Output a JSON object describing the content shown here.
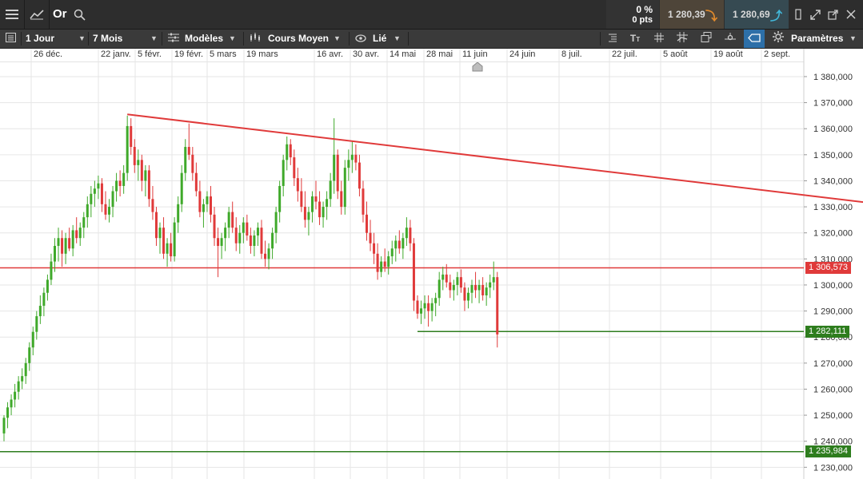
{
  "header": {
    "instrument": "Or",
    "change_pct": "0 %",
    "change_pts": "0 pts",
    "sell_price": "1 280,39",
    "buy_price": "1 280,69",
    "icons": {
      "menu": "menu-icon",
      "chart_type": "line-chart-icon",
      "search": "search-icon",
      "sell_arrow": "arrow-down-icon",
      "buy_arrow": "arrow-up-icon",
      "restore": "window-restore-icon",
      "expand": "expand-icon",
      "popout": "popout-icon",
      "close": "close-icon"
    },
    "colors": {
      "sell": "#e08a2c",
      "buy": "#42b6d8"
    }
  },
  "toolbar": {
    "interval": "1 Jour",
    "period": "7 Mois",
    "models": "Modèles",
    "indicator": "Cours Moyen",
    "link": "Lié",
    "settings": "Paramètres",
    "right_tools": [
      "list-icon",
      "text-tool-icon",
      "grid-icon",
      "crosshair-icon",
      "layers-icon",
      "pin-icon",
      "tag-icon",
      "gear-icon"
    ]
  },
  "chart_data": {
    "type": "candlestick",
    "x_labels": [
      "26 déc.",
      "22 janv.",
      "5 févr.",
      "19 févr.",
      "5 mars",
      "19 mars",
      "16 avr.",
      "30 avr.",
      "14 mai",
      "28 mai",
      "11 juin",
      "24 juin",
      "8 juil.",
      "22 juil.",
      "5 août",
      "19 août",
      "2 sept."
    ],
    "y_tick_labels": [
      "1 380,000",
      "1 370,000",
      "1 360,000",
      "1 350,000",
      "1 340,000",
      "1 330,000",
      "1 320,000",
      "1 310,000",
      "1 300,000",
      "1 290,000",
      "1 280,000",
      "1 270,000",
      "1 260,000",
      "1 250,000",
      "1 240,000",
      "1 230,000"
    ],
    "y_ticks": [
      1380,
      1370,
      1360,
      1350,
      1340,
      1330,
      1320,
      1310,
      1300,
      1290,
      1280,
      1270,
      1260,
      1250,
      1240,
      1230
    ],
    "ylim": [
      1225.5,
      1385.5
    ],
    "grid": true,
    "colors": {
      "up": "#3fa92a",
      "down": "#e03a3a",
      "trend": "#e03a3a",
      "support": "#2e7d1e"
    },
    "candles": [
      [
        1243,
        1250,
        1240,
        1249
      ],
      [
        1249,
        1255,
        1245,
        1253
      ],
      [
        1253,
        1258,
        1250,
        1256
      ],
      [
        1256,
        1262,
        1253,
        1259
      ],
      [
        1259,
        1265,
        1256,
        1263
      ],
      [
        1263,
        1268,
        1260,
        1265
      ],
      [
        1265,
        1272,
        1262,
        1270
      ],
      [
        1270,
        1278,
        1267,
        1276
      ],
      [
        1276,
        1284,
        1273,
        1282
      ],
      [
        1282,
        1290,
        1279,
        1288
      ],
      [
        1288,
        1296,
        1285,
        1292
      ],
      [
        1292,
        1299,
        1288,
        1297
      ],
      [
        1297,
        1304,
        1294,
        1302
      ],
      [
        1302,
        1312,
        1300,
        1309
      ],
      [
        1309,
        1318,
        1305,
        1315
      ],
      [
        1315,
        1322,
        1309,
        1318
      ],
      [
        1318,
        1321,
        1307,
        1312
      ],
      [
        1312,
        1320,
        1308,
        1318
      ],
      [
        1318,
        1322,
        1313,
        1314
      ],
      [
        1314,
        1323,
        1311,
        1321
      ],
      [
        1321,
        1326,
        1316,
        1318
      ],
      [
        1318,
        1324,
        1315,
        1322
      ],
      [
        1322,
        1328,
        1318,
        1326
      ],
      [
        1326,
        1334,
        1322,
        1331
      ],
      [
        1331,
        1338,
        1326,
        1335
      ],
      [
        1335,
        1340,
        1330,
        1337
      ],
      [
        1337,
        1342,
        1333,
        1339
      ],
      [
        1339,
        1341,
        1328,
        1331
      ],
      [
        1331,
        1336,
        1325,
        1327
      ],
      [
        1327,
        1333,
        1324,
        1330
      ],
      [
        1330,
        1338,
        1326,
        1336
      ],
      [
        1336,
        1343,
        1332,
        1340
      ],
      [
        1340,
        1344,
        1334,
        1338
      ],
      [
        1338,
        1346,
        1335,
        1343
      ],
      [
        1343,
        1365,
        1340,
        1361
      ],
      [
        1361,
        1364,
        1350,
        1353
      ],
      [
        1353,
        1356,
        1343,
        1346
      ],
      [
        1346,
        1352,
        1340,
        1348
      ],
      [
        1348,
        1350,
        1336,
        1340
      ],
      [
        1340,
        1346,
        1334,
        1344
      ],
      [
        1344,
        1346,
        1330,
        1333
      ],
      [
        1333,
        1338,
        1325,
        1328
      ],
      [
        1328,
        1330,
        1315,
        1318
      ],
      [
        1318,
        1324,
        1312,
        1322
      ],
      [
        1322,
        1326,
        1310,
        1312
      ],
      [
        1312,
        1318,
        1307,
        1316
      ],
      [
        1316,
        1320,
        1309,
        1311
      ],
      [
        1311,
        1326,
        1309,
        1324
      ],
      [
        1324,
        1334,
        1320,
        1331
      ],
      [
        1331,
        1346,
        1328,
        1343
      ],
      [
        1343,
        1356,
        1340,
        1353
      ],
      [
        1353,
        1362,
        1348,
        1350
      ],
      [
        1350,
        1353,
        1340,
        1343
      ],
      [
        1343,
        1347,
        1334,
        1336
      ],
      [
        1336,
        1340,
        1326,
        1328
      ],
      [
        1328,
        1333,
        1322,
        1331
      ],
      [
        1331,
        1336,
        1328,
        1334
      ],
      [
        1334,
        1338,
        1324,
        1327
      ],
      [
        1327,
        1330,
        1315,
        1318
      ],
      [
        1318,
        1322,
        1303,
        1315
      ],
      [
        1315,
        1320,
        1310,
        1318
      ],
      [
        1318,
        1324,
        1313,
        1322
      ],
      [
        1322,
        1330,
        1318,
        1328
      ],
      [
        1328,
        1332,
        1320,
        1322
      ],
      [
        1322,
        1326,
        1313,
        1316
      ],
      [
        1316,
        1323,
        1312,
        1320
      ],
      [
        1320,
        1326,
        1316,
        1324
      ],
      [
        1324,
        1327,
        1317,
        1319
      ],
      [
        1319,
        1322,
        1312,
        1315
      ],
      [
        1315,
        1321,
        1311,
        1319
      ],
      [
        1319,
        1324,
        1315,
        1322
      ],
      [
        1322,
        1325,
        1310,
        1312
      ],
      [
        1312,
        1317,
        1307,
        1310
      ],
      [
        1310,
        1316,
        1306,
        1314
      ],
      [
        1314,
        1322,
        1310,
        1320
      ],
      [
        1320,
        1330,
        1316,
        1328
      ],
      [
        1328,
        1340,
        1324,
        1338
      ],
      [
        1338,
        1350,
        1334,
        1348
      ],
      [
        1348,
        1357,
        1344,
        1354
      ],
      [
        1354,
        1356,
        1346,
        1349
      ],
      [
        1349,
        1352,
        1338,
        1341
      ],
      [
        1341,
        1345,
        1332,
        1336
      ],
      [
        1336,
        1341,
        1328,
        1330
      ],
      [
        1330,
        1336,
        1322,
        1325
      ],
      [
        1325,
        1330,
        1319,
        1328
      ],
      [
        1328,
        1336,
        1324,
        1334
      ],
      [
        1334,
        1340,
        1329,
        1332
      ],
      [
        1332,
        1336,
        1323,
        1326
      ],
      [
        1326,
        1332,
        1322,
        1330
      ],
      [
        1330,
        1336,
        1325,
        1333
      ],
      [
        1333,
        1343,
        1330,
        1340
      ],
      [
        1340,
        1364,
        1335,
        1350
      ],
      [
        1350,
        1352,
        1333,
        1336
      ],
      [
        1336,
        1340,
        1327,
        1330
      ],
      [
        1330,
        1348,
        1327,
        1345
      ],
      [
        1345,
        1352,
        1340,
        1348
      ],
      [
        1348,
        1355,
        1343,
        1350
      ],
      [
        1350,
        1354,
        1344,
        1347
      ],
      [
        1347,
        1350,
        1334,
        1337
      ],
      [
        1337,
        1340,
        1324,
        1327
      ],
      [
        1327,
        1332,
        1317,
        1320
      ],
      [
        1320,
        1325,
        1313,
        1316
      ],
      [
        1316,
        1320,
        1308,
        1312
      ],
      [
        1312,
        1316,
        1302,
        1305
      ],
      [
        1305,
        1311,
        1303,
        1309
      ],
      [
        1309,
        1314,
        1305,
        1307
      ],
      [
        1307,
        1313,
        1304,
        1311
      ],
      [
        1311,
        1317,
        1308,
        1314
      ],
      [
        1314,
        1319,
        1309,
        1317
      ],
      [
        1317,
        1321,
        1312,
        1314
      ],
      [
        1314,
        1320,
        1310,
        1318
      ],
      [
        1318,
        1326,
        1315,
        1322
      ],
      [
        1322,
        1325,
        1313,
        1316
      ],
      [
        1316,
        1318,
        1290,
        1294
      ],
      [
        1294,
        1296,
        1287,
        1289
      ],
      [
        1289,
        1294,
        1285,
        1291
      ],
      [
        1291,
        1296,
        1287,
        1293
      ],
      [
        1293,
        1296,
        1284,
        1290
      ],
      [
        1290,
        1295,
        1286,
        1293
      ],
      [
        1293,
        1297,
        1288,
        1295
      ],
      [
        1295,
        1305,
        1292,
        1302
      ],
      [
        1302,
        1307,
        1298,
        1304
      ],
      [
        1304,
        1308,
        1299,
        1301
      ],
      [
        1301,
        1304,
        1295,
        1298
      ],
      [
        1298,
        1302,
        1294,
        1300
      ],
      [
        1300,
        1305,
        1296,
        1303
      ],
      [
        1303,
        1306,
        1297,
        1299
      ],
      [
        1299,
        1301,
        1290,
        1294
      ],
      [
        1294,
        1299,
        1291,
        1297
      ],
      [
        1297,
        1302,
        1293,
        1300
      ],
      [
        1300,
        1305,
        1295,
        1298
      ],
      [
        1298,
        1302,
        1293,
        1300
      ],
      [
        1300,
        1303,
        1294,
        1296
      ],
      [
        1296,
        1301,
        1292,
        1299
      ],
      [
        1299,
        1304,
        1295,
        1301
      ],
      [
        1301,
        1309,
        1298,
        1303
      ],
      [
        1303,
        1305,
        1276,
        1281
      ]
    ],
    "trendline": {
      "start": {
        "index": 34,
        "price": 1365.5
      },
      "end": {
        "index": 287,
        "price": 1323.5
      }
    },
    "levels": [
      {
        "price": 1306.573,
        "label": "1 306,573",
        "color": "#e03a3a",
        "start_index": -4
      },
      {
        "price": 1282.111,
        "label": "1 282,111",
        "color": "#2e7d1e",
        "start_index": 114
      },
      {
        "price": 1235.984,
        "label": "1 235,984",
        "color": "#2e7d1e",
        "start_index": -4
      }
    ]
  }
}
